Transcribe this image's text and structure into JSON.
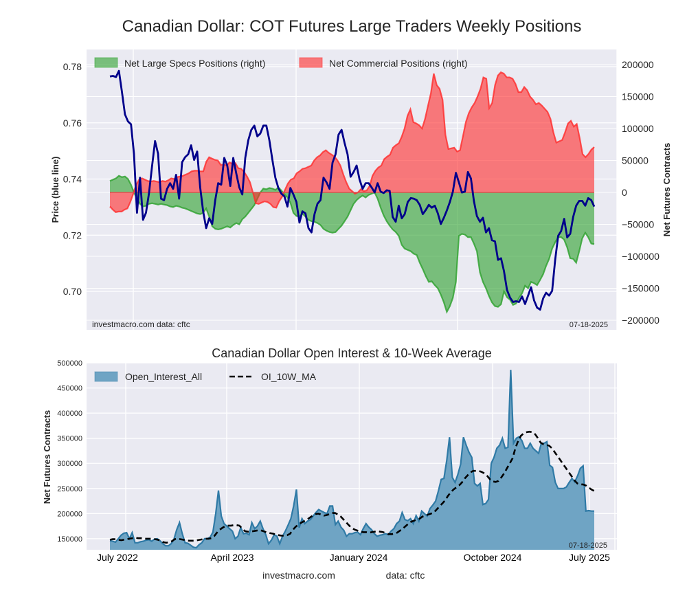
{
  "chart_data": [
    {
      "type": "line",
      "title": "Canadian Dollar: COT Futures Large Traders Weekly Positions",
      "ylabel": "Price (blue line)",
      "ylabel_right": "Net Futures Contracts",
      "ylim": [
        0.69,
        0.786
      ],
      "ylim_right": [
        -200000,
        210000
      ],
      "yticks": [
        "0.78",
        "0.76",
        "0.74",
        "0.72",
        "0.70"
      ],
      "yticks_right": [
        "200000",
        "150000",
        "100000",
        "50000",
        "0",
        "−50000",
        "−100000",
        "−150000",
        "−200000"
      ],
      "grid": true,
      "legend_position": "top-left",
      "legend": [
        "Net Large Specs Positions (right)",
        "Net Commercial Positions (right)"
      ],
      "annotation_left": "investmacro.com    data: cftc",
      "annotation_right": "07-18-2025",
      "colors": {
        "price": "#00008b",
        "specs": "#2ca02c",
        "commercial": "#ff2a2a",
        "zero_line": "#d9534f"
      },
      "series": [
        {
          "name": "Price",
          "axis": "left",
          "values": [
            0.7765,
            0.7767,
            0.7763,
            0.7785,
            0.771,
            0.763,
            0.7605,
            0.7595,
            0.749,
            0.728,
            0.7405,
            0.7255,
            0.728,
            0.735,
            0.7445,
            0.7535,
            0.749,
            0.733,
            0.7325,
            0.7365,
            0.7385,
            0.7365,
            0.7415,
            0.733,
            0.746,
            0.7478,
            0.7488,
            0.752,
            0.7468,
            0.7498,
            0.737,
            0.7285,
            0.7225,
            0.726,
            0.724,
            0.7325,
            0.7385,
            0.738,
            0.7475,
            0.7448,
            0.7375,
            0.7475,
            0.742,
            0.737,
            0.7345,
            0.7475,
            0.7538,
            0.7575,
            0.759,
            0.7552,
            0.7562,
            0.759,
            0.759,
            0.7538,
            0.7468,
            0.7405,
            0.7368,
            0.7348,
            0.7338,
            0.7302,
            0.7368,
            0.7345,
            0.7318,
            0.7245,
            0.7285,
            0.7278,
            0.7225,
            0.721,
            0.7275,
            0.7312,
            0.7325,
            0.7405,
            0.7388,
            0.7365,
            0.7458,
            0.7488,
            0.7558,
            0.7575,
            0.7528,
            0.7488,
            0.7408,
            0.7425,
            0.7448,
            0.7398,
            0.7365,
            0.7385,
            0.7385,
            0.737,
            0.7352,
            0.7385,
            0.7355,
            0.735,
            0.736,
            0.7358,
            0.7265,
            0.7248,
            0.7305,
            0.726,
            0.7275,
            0.7318,
            0.7332,
            0.733,
            0.7325,
            0.7308,
            0.7275,
            0.729,
            0.7308,
            0.7298,
            0.7305,
            0.7278,
            0.724,
            0.7262,
            0.7288,
            0.7318,
            0.7355,
            0.7422,
            0.7388,
            0.7352,
            0.7355,
            0.7425,
            0.7402,
            0.7322,
            0.7268,
            0.7248,
            0.7262,
            0.721,
            0.7225,
            0.7182,
            0.7178,
            0.7112,
            0.7118,
            0.7072,
            0.7005,
            0.6978,
            0.6962,
            0.6965,
            0.6962,
            0.6982,
            0.6955,
            0.6985,
            0.7015,
            0.6968,
            0.6942,
            0.6935,
            0.6975,
            0.6995,
            0.6985,
            0.7002,
            0.7112,
            0.7198,
            0.7215,
            0.7258,
            0.7192,
            0.7205,
            0.7265,
            0.7305,
            0.7322,
            0.7322,
            0.7305,
            0.7332,
            0.7325,
            0.7302
          ]
        },
        {
          "name": "Net Large Specs Positions (right)",
          "axis": "right",
          "values": [
            18000,
            20000,
            22000,
            26000,
            24000,
            25000,
            21000,
            12000,
            0,
            -10000,
            -18000,
            -22000,
            -21000,
            -18000,
            -17000,
            -18000,
            -19000,
            -18000,
            -19000,
            -20000,
            -22000,
            -23000,
            -21000,
            -22000,
            -24000,
            -25000,
            -27000,
            -29000,
            -31000,
            -33000,
            -34000,
            -32000,
            -25000,
            -38000,
            -53000,
            -57000,
            -58000,
            -57000,
            -55000,
            -53000,
            -55000,
            -51000,
            -48000,
            -50000,
            -42000,
            -38000,
            -32000,
            -26000,
            -20000,
            -10000,
            0,
            6000,
            5000,
            7000,
            6000,
            4000,
            8000,
            3000,
            -3000,
            -8000,
            -16000,
            -32000,
            -37000,
            -38000,
            -33000,
            -38000,
            -43000,
            -45000,
            -46000,
            -48000,
            -51000,
            -57000,
            -60000,
            -62000,
            -63000,
            -62000,
            -57000,
            -52000,
            -45000,
            -38000,
            -28000,
            -18000,
            -12000,
            -8000,
            -5000,
            -8000,
            -4000,
            -2000,
            0,
            -10000,
            -24000,
            -36000,
            -45000,
            -52000,
            -58000,
            -62000,
            -68000,
            -82000,
            -88000,
            -90000,
            -92000,
            -96000,
            -98000,
            -110000,
            -120000,
            -131000,
            -140000,
            -139000,
            -145000,
            -150000,
            -160000,
            -172000,
            -187000,
            -178000,
            -165000,
            -140000,
            -68000,
            -65000,
            -66000,
            -70000,
            -70000,
            -80000,
            -92000,
            -125000,
            -140000,
            -150000,
            -162000,
            -172000,
            -178000,
            -179000,
            -175000,
            -155000,
            -164000,
            -168000,
            -176000,
            -174000,
            -165000,
            -158000,
            -146000,
            -150000,
            -140000,
            -142000,
            -145000,
            -137000,
            -128000,
            -115000,
            -104000,
            -88000,
            -78000,
            -70000,
            -70000,
            -74000,
            -86000,
            -103000,
            -104000,
            -110000,
            -92000,
            -72000,
            -63000,
            -70000,
            -80000,
            -81000
          ]
        },
        {
          "name": "Net Commercial Positions (right)",
          "axis": "right",
          "values": [
            -22000,
            -27000,
            -31000,
            -30000,
            -30000,
            -27000,
            -25000,
            -15000,
            -2000,
            12000,
            20000,
            22000,
            20000,
            18000,
            17000,
            18000,
            17000,
            16000,
            18000,
            17000,
            19000,
            22000,
            21000,
            24000,
            25000,
            26000,
            28000,
            30000,
            33000,
            34000,
            34000,
            33000,
            33000,
            48000,
            55000,
            53000,
            51000,
            50000,
            43000,
            44000,
            42000,
            47000,
            45000,
            46000,
            38000,
            37000,
            32000,
            25000,
            16000,
            0,
            -17000,
            -18000,
            -16000,
            -14000,
            -15000,
            -18000,
            -23000,
            -24000,
            -14000,
            -7000,
            4000,
            14000,
            20000,
            22000,
            30000,
            33000,
            37000,
            38000,
            40000,
            42000,
            50000,
            55000,
            58000,
            63000,
            66000,
            62000,
            59000,
            56000,
            50000,
            42000,
            28000,
            16000,
            6000,
            2000,
            -2000,
            0,
            5000,
            2000,
            3000,
            10000,
            26000,
            34000,
            39000,
            42000,
            52000,
            56000,
            59000,
            70000,
            74000,
            77000,
            87000,
            100000,
            120000,
            130000,
            110000,
            108000,
            105000,
            100000,
            115000,
            135000,
            155000,
            186000,
            168000,
            162000,
            145000,
            90000,
            68000,
            69000,
            70000,
            64000,
            66000,
            88000,
            110000,
            124000,
            133000,
            140000,
            150000,
            162000,
            180000,
            178000,
            132000,
            140000,
            168000,
            183000,
            188000,
            186000,
            180000,
            180000,
            178000,
            170000,
            157000,
            157000,
            165000,
            160000,
            150000,
            145000,
            138000,
            140000,
            136000,
            131000,
            126000,
            115000,
            94000,
            78000,
            80000,
            82000,
            94000,
            108000,
            112000,
            103000,
            107000,
            85000,
            60000,
            55000,
            60000,
            67000,
            71000
          ]
        }
      ]
    },
    {
      "type": "area",
      "title": "Canadian Dollar Open Interest & 10-Week Average",
      "ylabel": "Net Futures Contracts",
      "ylim": [
        128000,
        500000
      ],
      "yticks": [
        "500000",
        "450000",
        "400000",
        "350000",
        "300000",
        "250000",
        "200000",
        "150000"
      ],
      "xticks": [
        "July 2022",
        "April 2023",
        "January 2024",
        "October 2024",
        "July 2025"
      ],
      "grid": true,
      "legend_position": "top-left",
      "legend": [
        "Open_Interest_All",
        "OI_10W_MA"
      ],
      "annotation_right": "07-18-2025",
      "colors": {
        "oi_fill": "#6fa4c4",
        "oi_line": "#2f7aa6",
        "ma": "#000000"
      },
      "series": [
        {
          "name": "Open_Interest_All",
          "values": [
            146000,
            145000,
            143000,
            150000,
            157000,
            161000,
            162000,
            150000,
            162000,
            142000,
            142000,
            144000,
            145000,
            147000,
            148000,
            145000,
            149000,
            150000,
            146000,
            140000,
            136000,
            136000,
            140000,
            149000,
            168000,
            182000,
            160000,
            142000,
            141000,
            137000,
            133000,
            132000,
            138000,
            142000,
            150000,
            150000,
            153000,
            163000,
            200000,
            246000,
            195000,
            180000,
            175000,
            170000,
            165000,
            150000,
            155000,
            172000,
            160000,
            161000,
            158000,
            182000,
            170000,
            175000,
            185000,
            170000,
            158000,
            140000,
            147000,
            158000,
            155000,
            140000,
            155000,
            165000,
            177000,
            190000,
            215000,
            248000,
            172000,
            190000,
            180000,
            185000,
            188000,
            195000,
            202000,
            208000,
            205000,
            202000,
            200000,
            215000,
            215000,
            178000,
            185000,
            173000,
            167000,
            155000,
            160000,
            160000,
            162000,
            163000,
            158000,
            170000,
            180000,
            173000,
            168000,
            160000,
            155000,
            157000,
            158000,
            160000,
            158000,
            165000,
            170000,
            180000,
            185000,
            202000,
            188000,
            186000,
            190000,
            180000,
            196000,
            185000,
            205000,
            200000,
            195000,
            210000,
            217000,
            225000,
            245000,
            268000,
            270000,
            306000,
            352000,
            272000,
            262000,
            278000,
            298000,
            352000,
            336000,
            322000,
            312000,
            260000,
            255000,
            260000,
            218000,
            220000,
            228000,
            300000,
            312000,
            330000,
            336000,
            350000,
            330000,
            332000,
            486000,
            340000,
            350000,
            353000,
            345000,
            330000,
            330000,
            340000,
            330000,
            325000,
            320000,
            340000,
            340000,
            343000,
            296000,
            292000,
            262000,
            250000,
            250000,
            250000,
            253000,
            262000,
            270000,
            263000,
            275000,
            290000,
            295000,
            205000,
            206000,
            205000,
            205000
          ]
        },
        {
          "name": "OI_10W_MA",
          "values": [
            148000,
            149000,
            149000,
            148000,
            147000,
            148000,
            149000,
            150000,
            151000,
            152000,
            151000,
            151000,
            150000,
            150000,
            150000,
            150000,
            149000,
            148000,
            146000,
            143000,
            142000,
            143000,
            145000,
            149000,
            150000,
            149000,
            148000,
            147000,
            146000,
            146000,
            146000,
            147000,
            148000,
            149000,
            150000,
            150000,
            151000,
            155000,
            162000,
            168000,
            172000,
            175000,
            176000,
            176000,
            177000,
            177000,
            176000,
            170000,
            165000,
            164000,
            164000,
            165000,
            166000,
            167000,
            166000,
            164000,
            162000,
            161000,
            160000,
            158000,
            157000,
            156000,
            156000,
            157000,
            160000,
            168000,
            174000,
            178000,
            182000,
            185000,
            188000,
            192000,
            196000,
            199000,
            200000,
            198000,
            196000,
            197000,
            199000,
            201000,
            201000,
            198000,
            194000,
            188000,
            182000,
            176000,
            171000,
            168000,
            166000,
            164000,
            163000,
            163000,
            162000,
            163000,
            164000,
            165000,
            164000,
            163000,
            161000,
            159000,
            159000,
            160000,
            162000,
            166000,
            170000,
            175000,
            180000,
            184000,
            186000,
            188000,
            190000,
            194000,
            196000,
            198000,
            200000,
            202000,
            208000,
            214000,
            220000,
            226000,
            235000,
            242000,
            248000,
            252000,
            256000,
            262000,
            270000,
            276000,
            282000,
            285000,
            285000,
            285000,
            283000,
            280000,
            275000,
            268000,
            264000,
            263000,
            265000,
            272000,
            280000,
            290000,
            300000,
            310000,
            330000,
            345000,
            355000,
            360000,
            362000,
            363000,
            362000,
            358000,
            350000,
            341000,
            338000,
            337000,
            335000,
            330000,
            322000,
            314000,
            306000,
            298000,
            290000,
            282000,
            274000,
            266000,
            260000,
            258000,
            258000,
            256000,
            252000,
            248000,
            245000
          ]
        }
      ]
    }
  ],
  "footer": {
    "site": "investmacro.com",
    "data_source": "data: cftc"
  }
}
